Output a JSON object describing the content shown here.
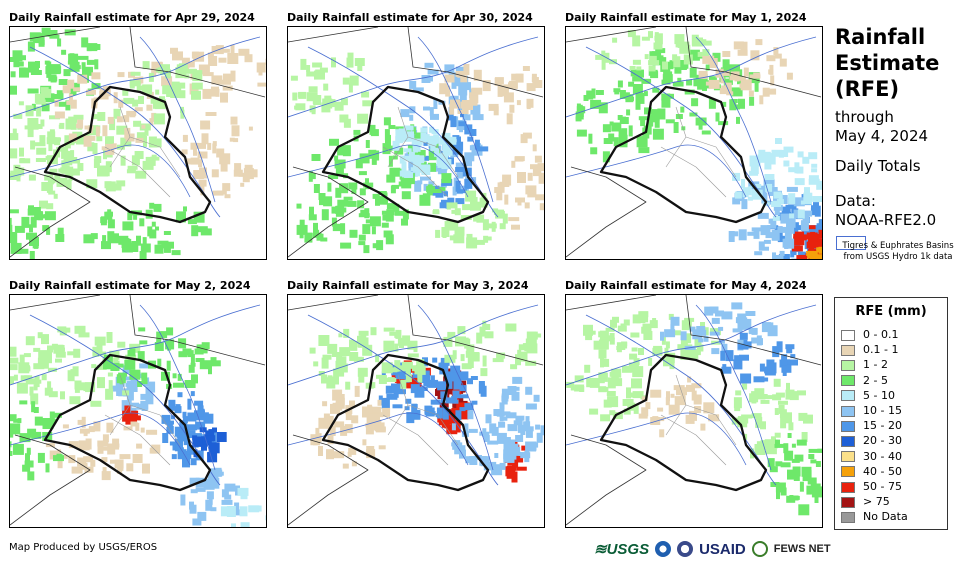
{
  "panels": [
    {
      "title": "Daily Rainfall estimate for Apr 29, 2024",
      "pattern": "light-north-west"
    },
    {
      "title": "Daily Rainfall estimate for Apr 30, 2024",
      "pattern": "band-central"
    },
    {
      "title": "Daily Rainfall estimate for May 1, 2024",
      "pattern": "heavy-south-east"
    },
    {
      "title": "Daily Rainfall estimate for May 2, 2024",
      "pattern": "east-cells"
    },
    {
      "title": "Daily Rainfall estimate for May 3, 2024",
      "pattern": "storm-central"
    },
    {
      "title": "Daily Rainfall estimate for May 4, 2024",
      "pattern": "light-north"
    }
  ],
  "side": {
    "title_line1": "Rainfall",
    "title_line2": "Estimate",
    "title_line3": "(RFE)",
    "through_label": "through",
    "through_date": "May 4, 2024",
    "totals_label": "Daily Totals",
    "data_label": "Data:",
    "data_source": "NOAA-RFE2.0",
    "basin_label": "Tigres & Euphrates Basins from USGS Hydro 1k data",
    "basin_color": "#4a6fd1"
  },
  "legend": {
    "title": "RFE (mm)",
    "items": [
      {
        "label": "0 - 0.1",
        "color": "#ffffff"
      },
      {
        "label": "0.1 - 1",
        "color": "#e8d5b5"
      },
      {
        "label": "1 - 2",
        "color": "#b6f5a3"
      },
      {
        "label": "2 - 5",
        "color": "#6ee86a"
      },
      {
        "label": "5 - 10",
        "color": "#b9ecf7"
      },
      {
        "label": "10 - 15",
        "color": "#8ec4f2"
      },
      {
        "label": "15 - 20",
        "color": "#4f97e8"
      },
      {
        "label": "20 - 30",
        "color": "#1d5fd6"
      },
      {
        "label": "30 - 40",
        "color": "#fbe08a"
      },
      {
        "label": "40 - 50",
        "color": "#f5a10a"
      },
      {
        "label": "50 - 75",
        "color": "#e8220e"
      },
      {
        "label": "> 75",
        "color": "#a31414"
      },
      {
        "label": "No Data",
        "color": "#999999"
      }
    ]
  },
  "footer": {
    "credit": "Map Produced by USGS/EROS",
    "logo_usgs": "≋USGS",
    "logo_usaid": "USAID",
    "logo_fews": "FEWS NET"
  }
}
